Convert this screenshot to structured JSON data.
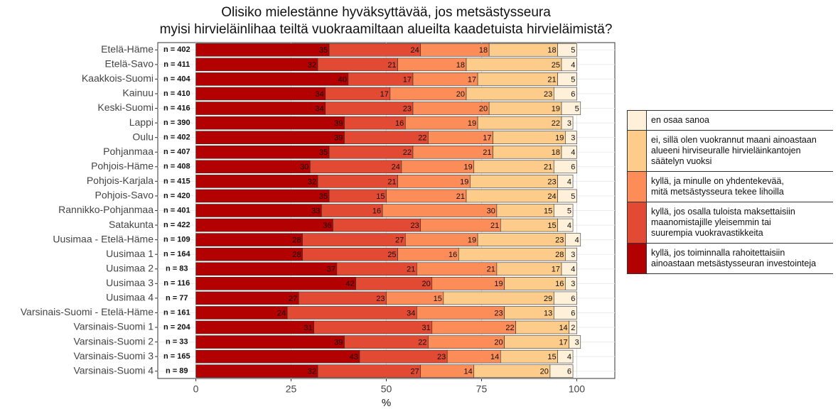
{
  "chart_data": {
    "type": "stacked-barh",
    "title": "Olisiko mielestänne hyväksyttävää, jos metsästysseura\nmyisi hirvieläinlihaa teiltä vuokraamiltaan alueilta kaadetuista hirvieläimistä?",
    "xlabel": "%",
    "categories": [
      "Etelä-Häme",
      "Etelä-Savo",
      "Kaakkois-Suomi",
      "Kainuu",
      "Keski-Suomi",
      "Lappi",
      "Oulu",
      "Pohjanmaa",
      "Pohjois-Häme",
      "Pohjois-Karjala",
      "Pohjois-Savo",
      "Rannikko-Pohjanmaa",
      "Satakunta",
      "Uusimaa - Etelä-Häme",
      "Uusimaa 1",
      "Uusimaa 2",
      "Uusimaa 3",
      "Uusimaa 4",
      "Varsinais-Suomi - Etelä-Häme",
      "Varsinais-Suomi 1",
      "Varsinais-Suomi 2",
      "Varsinais-Suomi 3",
      "Varsinais-Suomi 4"
    ],
    "annotations": [
      "n = 402",
      "n = 411",
      "n = 404",
      "n = 410",
      "n = 416",
      "n = 390",
      "n = 402",
      "n = 407",
      "n = 408",
      "n = 415",
      "n = 420",
      "n = 401",
      "n = 422",
      "n = 109",
      "n = 164",
      "n = 83",
      "n = 116",
      "n = 77",
      "n = 161",
      "n = 204",
      "n = 33",
      "n = 165",
      "n = 89"
    ],
    "series": [
      {
        "name": "kyllä, jos toiminnalla rahoitettaisiin\nainoastaan metsästysseuran investointeja",
        "color": "#b30000",
        "values": [
          35,
          32,
          40,
          34,
          34,
          39,
          39,
          35,
          30,
          32,
          35,
          33,
          36,
          28,
          28,
          37,
          42,
          27,
          24,
          31,
          39,
          43,
          32
        ]
      },
      {
        "name": "kyllä, jos osalla tuloista maksettaisiin\nmaanomistajille yleisemmin tai\nsuurempia vuokravastikkeita",
        "color": "#e34a33",
        "values": [
          24,
          21,
          17,
          17,
          23,
          16,
          22,
          22,
          24,
          21,
          15,
          16,
          23,
          27,
          25,
          21,
          20,
          23,
          34,
          31,
          22,
          23,
          27
        ]
      },
      {
        "name": "kyllä, ja minulle on yhdentekevää,\nmitä metsästysseura tekee lihoilla",
        "color": "#fc8d59",
        "values": [
          18,
          18,
          17,
          20,
          20,
          19,
          17,
          21,
          19,
          19,
          21,
          30,
          21,
          19,
          16,
          21,
          19,
          15,
          23,
          22,
          20,
          14,
          14
        ]
      },
      {
        "name": "ei, sillä olen vuokrannut maani ainoastaan\nalueeni hirviseuralle hirvieläinkantojen\nsäätelyn vuoksi",
        "color": "#fdcc8a",
        "values": [
          18,
          25,
          21,
          23,
          19,
          22,
          19,
          18,
          21,
          23,
          24,
          15,
          15,
          23,
          28,
          17,
          16,
          29,
          13,
          14,
          17,
          15,
          20
        ]
      },
      {
        "name": "en osaa sanoa",
        "color": "#fef0d9",
        "values": [
          5,
          4,
          5,
          6,
          5,
          3,
          3,
          4,
          6,
          4,
          5,
          5,
          4,
          4,
          3,
          4,
          3,
          6,
          6,
          2,
          3,
          4,
          6
        ]
      }
    ],
    "xlim": [
      -10,
      110
    ],
    "xticks": [
      0,
      25,
      50,
      75,
      100
    ],
    "grid": true,
    "legend": "right"
  }
}
